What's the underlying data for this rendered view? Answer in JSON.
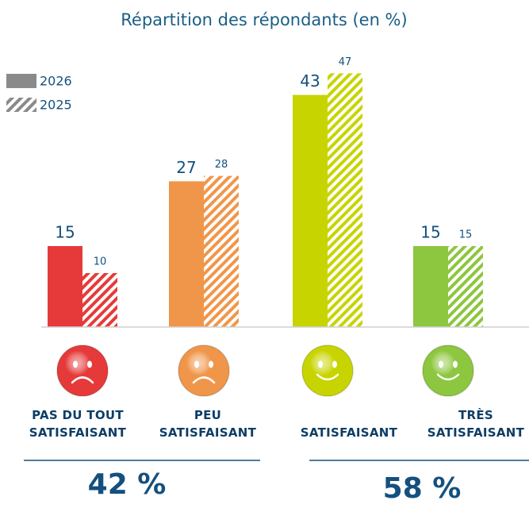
{
  "chart_data": {
    "type": "bar",
    "title": "Répartition des répondants (en %)",
    "categories": [
      "PAS DU TOUT\nSATISFAISANT",
      "PEU\nSATISFAISANT",
      "SATISFAISANT",
      "TRÈS\nSATISFAISANT"
    ],
    "colors": [
      "#e63a3a",
      "#f0964a",
      "#c8d400",
      "#8dc63f"
    ],
    "legend_color": "#8a8a8a",
    "series": [
      {
        "name": "2026",
        "values": [
          15,
          27,
          43,
          15
        ]
      },
      {
        "name": "2025",
        "values": [
          10,
          28,
          47,
          15
        ]
      }
    ],
    "ylim": [
      0,
      50
    ],
    "totals": [
      "42 %",
      "58 %"
    ]
  }
}
